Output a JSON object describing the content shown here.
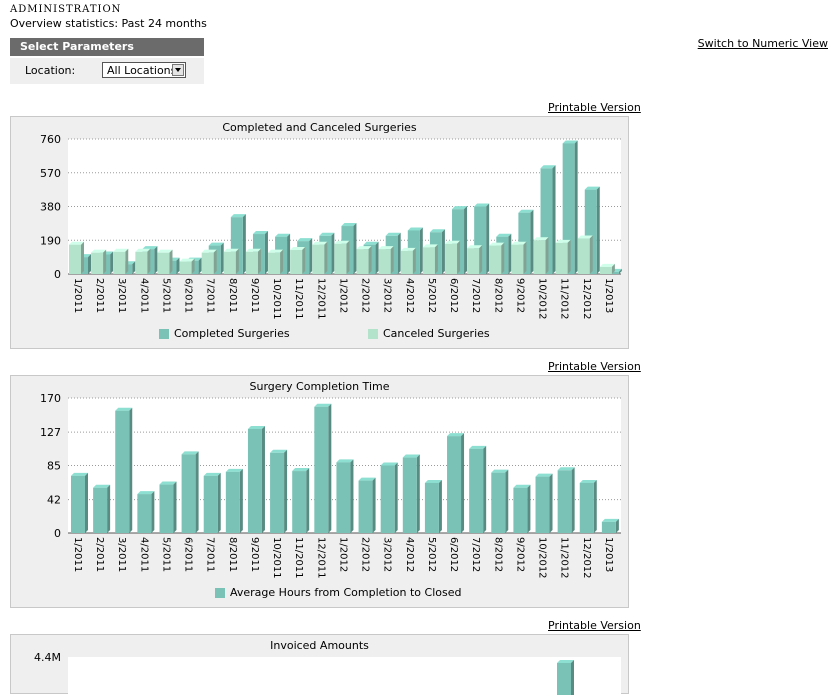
{
  "header": {
    "title": "ADMINISTRATION",
    "subtitle": "Overview statistics: Past 24 months",
    "switch_link": "Switch to Numeric View"
  },
  "params": {
    "title": "Select Parameters",
    "location_label": "Location:",
    "location_value": "All Locations"
  },
  "printable_label": "Printable Version",
  "colors": {
    "completed": "#7ac2b6",
    "canceled": "#b4e3cc",
    "panel_bg": "#efefef"
  },
  "chart_data": [
    {
      "type": "bar",
      "title": "Completed and Canceled Surgeries",
      "categories": [
        "1/2011",
        "2/2011",
        "3/2011",
        "4/2011",
        "5/2011",
        "6/2011",
        "7/2011",
        "8/2011",
        "9/2011",
        "10/2011",
        "11/2011",
        "12/2011",
        "1/2012",
        "2/2012",
        "3/2012",
        "4/2012",
        "5/2012",
        "6/2012",
        "7/2012",
        "8/2012",
        "9/2012",
        "10/2012",
        "11/2012",
        "12/2012",
        "1/2013"
      ],
      "series": [
        {
          "name": "Completed Surgeries",
          "values": [
            95,
            110,
            55,
            140,
            75,
            75,
            160,
            320,
            225,
            210,
            185,
            215,
            270,
            165,
            215,
            245,
            235,
            365,
            380,
            210,
            345,
            595,
            735,
            475,
            12
          ]
        },
        {
          "name": "Canceled Surgeries",
          "values": [
            165,
            120,
            125,
            125,
            120,
            70,
            120,
            125,
            125,
            120,
            135,
            165,
            170,
            140,
            140,
            130,
            150,
            170,
            145,
            160,
            165,
            190,
            175,
            200,
            40
          ]
        }
      ],
      "yticks": [
        0,
        190,
        380,
        570,
        760
      ],
      "ylim": [
        0,
        760
      ],
      "grid": true,
      "legend": "bottom"
    },
    {
      "type": "bar",
      "title": "Surgery Completion Time",
      "categories": [
        "1/2011",
        "2/2011",
        "3/2011",
        "4/2011",
        "5/2011",
        "6/2011",
        "7/2011",
        "8/2011",
        "9/2011",
        "10/2011",
        "11/2011",
        "12/2011",
        "1/2012",
        "2/2012",
        "3/2012",
        "4/2012",
        "5/2012",
        "6/2012",
        "7/2012",
        "8/2012",
        "9/2012",
        "10/2012",
        "11/2012",
        "12/2012",
        "1/2013"
      ],
      "series": [
        {
          "name": "Average Hours from Completion to Closed",
          "values": [
            72,
            57,
            154,
            49,
            61,
            99,
            72,
            77,
            131,
            101,
            78,
            159,
            89,
            66,
            85,
            95,
            63,
            122,
            106,
            76,
            57,
            71,
            79,
            63,
            14
          ]
        }
      ],
      "yticks": [
        0,
        42,
        85,
        127,
        170
      ],
      "ylim": [
        0,
        170
      ],
      "grid": true,
      "legend": "bottom"
    },
    {
      "type": "bar",
      "title": "Invoiced Amounts",
      "yticks": [
        "4.4M"
      ]
    }
  ]
}
